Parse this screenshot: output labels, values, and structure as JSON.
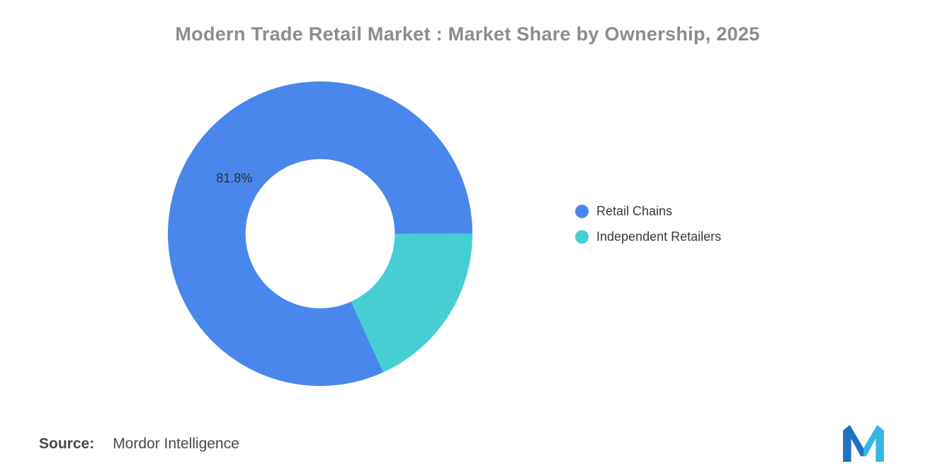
{
  "title": "Modern Trade Retail Market : Market Share by Ownership, 2025",
  "chart_data": {
    "type": "pie",
    "subtype": "donut",
    "title": "Modern Trade Retail Market : Market Share by Ownership, 2025",
    "categories": [
      "Retail Chains",
      "Independent Retailers"
    ],
    "values": [
      81.8,
      18.2
    ],
    "unit": "%",
    "colors": [
      "#4a87ec",
      "#45cfd2"
    ],
    "data_label": "81.8%",
    "labeled_slice_index": 0,
    "start_angle_deg": 155.5,
    "inner_radius_ratio": 0.49,
    "legend_position": "right",
    "background": "#ffffff"
  },
  "legend": {
    "items": [
      {
        "label": "Retail Chains",
        "color": "#4a87ec"
      },
      {
        "label": "Independent Retailers",
        "color": "#45cfd2"
      }
    ]
  },
  "source": {
    "prefix": "Source:",
    "text": "Mordor Intelligence"
  },
  "logo": {
    "name": "mordor-intelligence-logo",
    "primary_color": "#2073be",
    "accent_color": "#38b6e3"
  }
}
